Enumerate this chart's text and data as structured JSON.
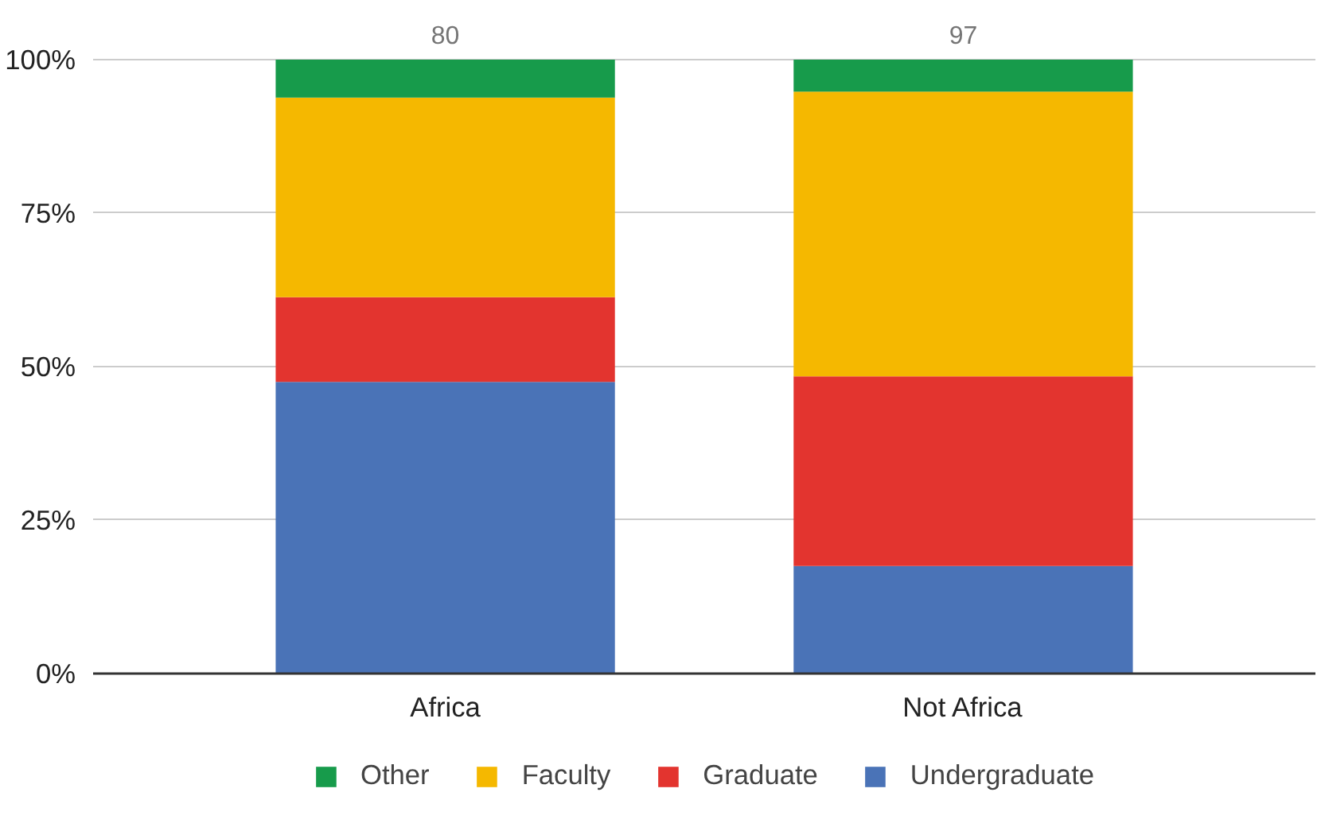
{
  "chart_data": {
    "type": "bar",
    "stacked": true,
    "categories": [
      "Africa",
      "Not Africa"
    ],
    "series": [
      {
        "name": "Undergraduate",
        "color": "#4a73b7",
        "values": [
          47.5,
          17.5
        ]
      },
      {
        "name": "Graduate",
        "color": "#e3342f",
        "values": [
          13.8,
          30.9
        ]
      },
      {
        "name": "Faculty",
        "color": "#f5b800",
        "values": [
          32.5,
          46.4
        ]
      },
      {
        "name": "Other",
        "color": "#179b4b",
        "values": [
          6.2,
          5.2
        ]
      }
    ],
    "annotations": [
      {
        "text": "80",
        "x": "Africa",
        "y": 100
      },
      {
        "text": "97",
        "x": "Not Africa",
        "y": 100
      }
    ],
    "ylim": [
      0,
      100
    ],
    "yticks": [
      {
        "value": 0,
        "label": "0%"
      },
      {
        "value": 25,
        "label": "25%"
      },
      {
        "value": 50,
        "label": "50%"
      },
      {
        "value": 75,
        "label": "75%"
      },
      {
        "value": 100,
        "label": "100%"
      }
    ],
    "grid": "y",
    "legend": "bottom"
  }
}
